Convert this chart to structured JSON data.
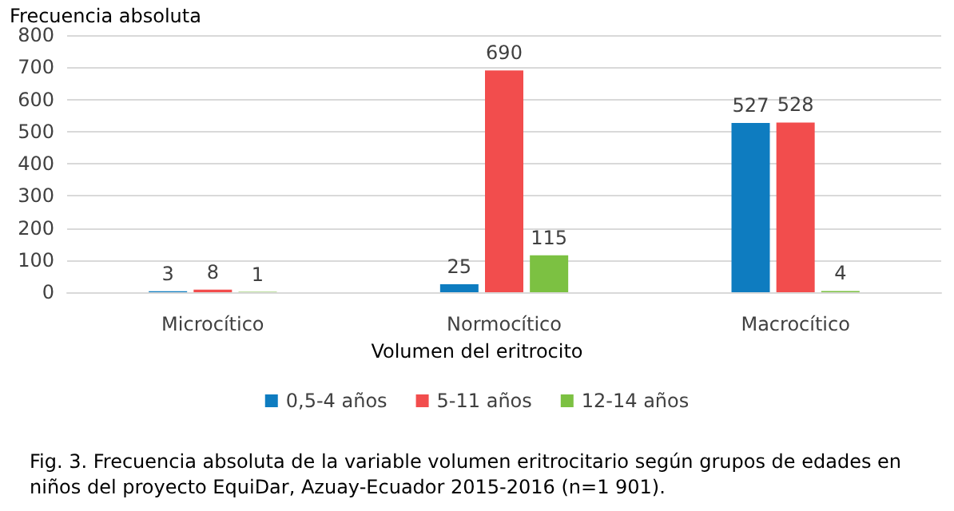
{
  "chart_data": {
    "type": "bar",
    "ylabel": "Frecuencia absoluta",
    "xlabel": "Volumen del eritrocito",
    "categories": [
      "Microcítico",
      "Normocítico",
      "Macrocítico"
    ],
    "series": [
      {
        "name": "0,5-4 años",
        "color": "#0e7cc0",
        "values": [
          3,
          25,
          527
        ]
      },
      {
        "name": "5-11 años",
        "color": "#f24d4d",
        "values": [
          8,
          690,
          528
        ]
      },
      {
        "name": "12-14 años",
        "color": "#7cc142",
        "values": [
          1,
          115,
          4
        ]
      }
    ],
    "ylim": [
      0,
      800
    ],
    "yticks": [
      0,
      100,
      200,
      300,
      400,
      500,
      600,
      700,
      800
    ],
    "grid": "y",
    "legend": "bottom",
    "data_labels": true,
    "annotations": [
      "Fig. 3. Frecuencia absoluta de la variable volumen eritrocitario según grupos de edades en niños del proyecto EquiDar, Azuay-Ecuador 2015-2016 (n=1 901)."
    ]
  }
}
